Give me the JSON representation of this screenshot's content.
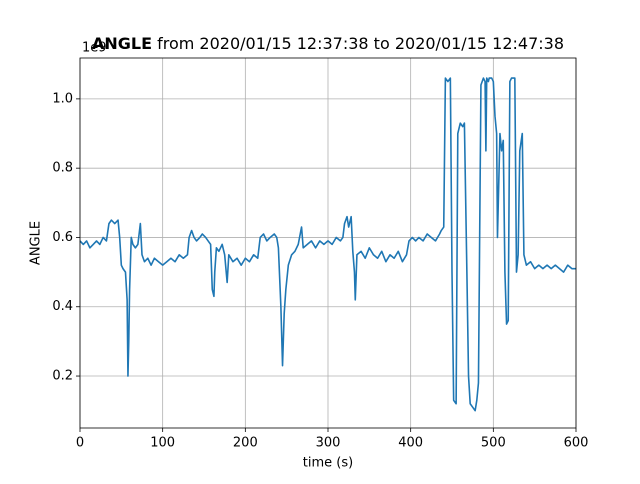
{
  "chart_data": {
    "type": "line",
    "title_bold": "ANGLE",
    "title": "from 2020/01/15 12:37:38 to 2020/01/15 12:47:38",
    "x_label": "time (s)",
    "y_label": "ANGLE",
    "y_offset_text": "1e9",
    "x": [
      0,
      4,
      8,
      12,
      16,
      20,
      24,
      28,
      32,
      35,
      38,
      42,
      46,
      48,
      50,
      52,
      55,
      57,
      58,
      59,
      60,
      62,
      64,
      67,
      70,
      73,
      75,
      78,
      82,
      86,
      90,
      95,
      100,
      105,
      110,
      115,
      120,
      125,
      130,
      132,
      135,
      138,
      141,
      145,
      148,
      152,
      155,
      158,
      160,
      162,
      163,
      165,
      168,
      172,
      175,
      178,
      180,
      185,
      190,
      195,
      200,
      205,
      210,
      215,
      218,
      222,
      226,
      230,
      235,
      238,
      240,
      243,
      245,
      247,
      249,
      252,
      256,
      260,
      264,
      268,
      270,
      275,
      280,
      285,
      290,
      295,
      300,
      305,
      310,
      315,
      318,
      320,
      323,
      325,
      328,
      330,
      332,
      333,
      335,
      340,
      345,
      350,
      355,
      360,
      365,
      370,
      375,
      380,
      385,
      390,
      395,
      398,
      402,
      406,
      410,
      415,
      420,
      425,
      430,
      435,
      437,
      440,
      442,
      445,
      448,
      450,
      452,
      455,
      457,
      460,
      463,
      465,
      468,
      470,
      472,
      475,
      478,
      480,
      482,
      485,
      488,
      490,
      491,
      492,
      494,
      495,
      498,
      500,
      502,
      504,
      505,
      506,
      508,
      510,
      512,
      514,
      516,
      518,
      520,
      522,
      526,
      528,
      530,
      532,
      535,
      537,
      540,
      545,
      550,
      555,
      560,
      565,
      570,
      575,
      580,
      585,
      590,
      595,
      600
    ],
    "values": [
      0.59,
      0.58,
      0.59,
      0.57,
      0.58,
      0.59,
      0.58,
      0.6,
      0.59,
      0.64,
      0.65,
      0.64,
      0.65,
      0.6,
      0.52,
      0.51,
      0.5,
      0.42,
      0.2,
      0.3,
      0.45,
      0.6,
      0.58,
      0.57,
      0.58,
      0.64,
      0.55,
      0.53,
      0.54,
      0.52,
      0.54,
      0.53,
      0.52,
      0.53,
      0.54,
      0.53,
      0.55,
      0.54,
      0.55,
      0.6,
      0.62,
      0.6,
      0.59,
      0.6,
      0.61,
      0.6,
      0.59,
      0.58,
      0.45,
      0.43,
      0.5,
      0.57,
      0.56,
      0.58,
      0.55,
      0.47,
      0.55,
      0.53,
      0.54,
      0.52,
      0.54,
      0.53,
      0.55,
      0.54,
      0.6,
      0.61,
      0.59,
      0.6,
      0.61,
      0.6,
      0.57,
      0.4,
      0.23,
      0.38,
      0.45,
      0.52,
      0.55,
      0.56,
      0.58,
      0.63,
      0.57,
      0.58,
      0.59,
      0.57,
      0.59,
      0.58,
      0.59,
      0.58,
      0.6,
      0.59,
      0.6,
      0.64,
      0.66,
      0.63,
      0.66,
      0.56,
      0.5,
      0.42,
      0.55,
      0.56,
      0.54,
      0.57,
      0.55,
      0.54,
      0.56,
      0.53,
      0.55,
      0.54,
      0.56,
      0.53,
      0.55,
      0.59,
      0.6,
      0.59,
      0.6,
      0.59,
      0.61,
      0.6,
      0.59,
      0.61,
      0.62,
      0.63,
      1.06,
      1.05,
      1.06,
      0.5,
      0.13,
      0.12,
      0.9,
      0.93,
      0.92,
      0.93,
      0.5,
      0.2,
      0.12,
      0.11,
      0.1,
      0.13,
      0.18,
      1.04,
      1.06,
      1.05,
      0.85,
      1.06,
      1.05,
      1.06,
      1.06,
      1.05,
      0.95,
      0.9,
      0.6,
      0.7,
      0.9,
      0.85,
      0.88,
      0.5,
      0.35,
      0.36,
      1.05,
      1.06,
      1.06,
      0.5,
      0.55,
      0.85,
      0.9,
      0.55,
      0.52,
      0.53,
      0.51,
      0.52,
      0.51,
      0.52,
      0.51,
      0.52,
      0.51,
      0.5,
      0.52,
      0.51,
      0.51
    ],
    "color": "#1f77b4",
    "xlim": [
      0,
      600
    ],
    "xticks": [
      0,
      100,
      200,
      300,
      400,
      500,
      600
    ],
    "ylim": [
      0.05,
      1.118
    ],
    "yticks": [
      0.2,
      0.4,
      0.6,
      0.8,
      {
        "value": 1,
        "label": "1.0"
      }
    ],
    "grid": true
  }
}
